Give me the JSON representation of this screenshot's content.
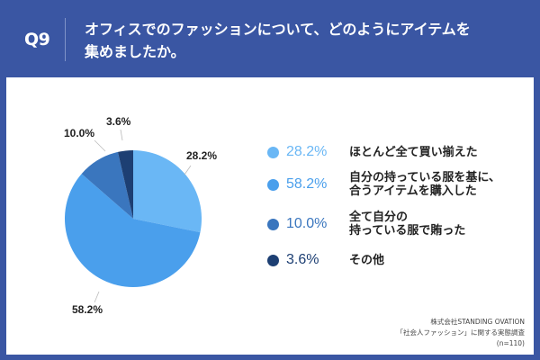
{
  "header": {
    "question_number": "Q9",
    "question_line1": "オフィスでのファッションについて、どのようにアイテムを",
    "question_line2": "集めましたか。"
  },
  "colors": {
    "background": "#3a56a3",
    "slice1": "#6ab7f5",
    "slice2": "#4a9fec",
    "slice3": "#3a76be",
    "slice4": "#1d3f73"
  },
  "chart_data": {
    "type": "pie",
    "title": "オフィスでのファッションについて、どのようにアイテムを集めましたか。",
    "categories": [
      "ほとんど全て買い揃えた",
      "自分の持っている服を基に、合うアイテムを購入した",
      "全て自分の持っている服で賄った",
      "その他"
    ],
    "values": [
      28.2,
      58.2,
      10.0,
      3.6
    ],
    "labels": [
      "28.2%",
      "58.2%",
      "10.0%",
      "3.6%"
    ],
    "legend_position": "right",
    "n": 110
  },
  "legend": [
    {
      "pct": "28.2%",
      "line1": "ほとんど全て買い揃えた",
      "line2": ""
    },
    {
      "pct": "58.2%",
      "line1": "自分の持っている服を基に、",
      "line2": "合うアイテムを購入した"
    },
    {
      "pct": "10.0%",
      "line1": "全て自分の",
      "line2": "持っている服で賄った"
    },
    {
      "pct": "3.6%",
      "line1": "その他",
      "line2": ""
    }
  ],
  "source": {
    "line1": "株式会社STANDING OVATION",
    "line2": "「社会人ファッション」に関する実態調査",
    "line3": "(n=110)"
  }
}
